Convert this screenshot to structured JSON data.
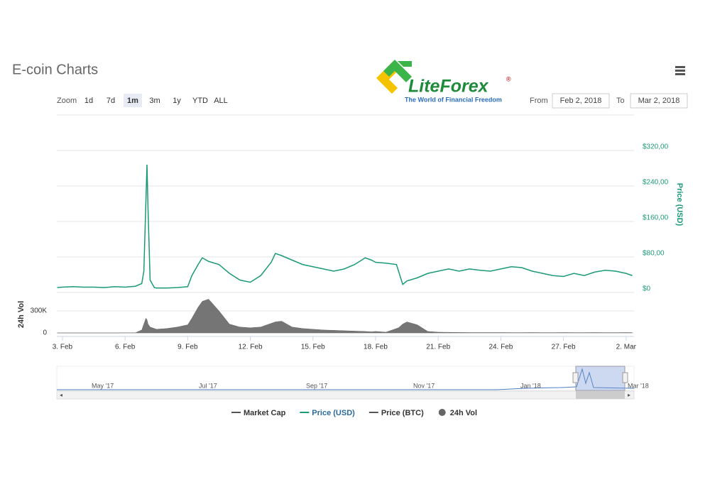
{
  "header": {
    "title": "E-coin Charts",
    "logo_text": "LiteForex",
    "logo_mark": "®",
    "logo_tagline": "The World of Financial Freedom"
  },
  "controls": {
    "zoom_label": "Zoom",
    "buttons": [
      "1d",
      "7d",
      "1m",
      "3m",
      "1y",
      "YTD",
      "ALL"
    ],
    "active_button": 2,
    "from_label": "From",
    "from_value": "Feb 2, 2018",
    "to_label": "To",
    "to_value": "Mar 2, 2018"
  },
  "navigator": {
    "labels": [
      "May '17",
      "Jul '17",
      "Sep '17",
      "Nov '17",
      "Jan '18",
      "Mar '18"
    ]
  },
  "chart_data": {
    "type": "line",
    "y_title": "Price (USD)",
    "y2_title": "24h Vol",
    "xlim": [
      2.73,
      30.38
    ],
    "xticks": [
      {
        "value": 3,
        "label": "3. Feb"
      },
      {
        "value": 6,
        "label": "6. Feb"
      },
      {
        "value": 9,
        "label": "9. Feb"
      },
      {
        "value": 12,
        "label": "12. Feb"
      },
      {
        "value": 15,
        "label": "15. Feb"
      },
      {
        "value": 18,
        "label": "18. Feb"
      },
      {
        "value": 21,
        "label": "21. Feb"
      },
      {
        "value": 24,
        "label": "24. Feb"
      },
      {
        "value": 27,
        "label": "27. Feb"
      },
      {
        "value": 30,
        "label": "2. Mar"
      }
    ],
    "ylim": [
      0,
      400
    ],
    "yticks": [
      {
        "value": 0,
        "label": "$0"
      },
      {
        "value": 80,
        "label": "$80,00"
      },
      {
        "value": 160,
        "label": "$160,00"
      },
      {
        "value": 240,
        "label": "$240,00"
      },
      {
        "value": 320,
        "label": "$320,00"
      }
    ],
    "y2lim": [
      0,
      500000
    ],
    "y2ticks": [
      0,
      {
        "value": 300000,
        "label": "300K"
      }
    ],
    "grid": true,
    "x": [
      2.75,
      3,
      3.5,
      4,
      4.5,
      5,
      5.5,
      6,
      6.5,
      6.8,
      6.9,
      7.0,
      7.05,
      7.1,
      7.2,
      7.4,
      7.5,
      8,
      8.5,
      9,
      9.2,
      9.5,
      9.7,
      10,
      10.5,
      11,
      11.5,
      12,
      12.5,
      13,
      13.2,
      13.5,
      14,
      14.5,
      15,
      15.5,
      16,
      16.5,
      17,
      17.5,
      17.8,
      18,
      18.5,
      19,
      19.1,
      19.3,
      19.5,
      20,
      20.5,
      21,
      21.5,
      22,
      22.5,
      23,
      23.5,
      24,
      24.5,
      25,
      25.5,
      26,
      26.5,
      27,
      27.5,
      28,
      28.5,
      29,
      29.5,
      30,
      30.3
    ],
    "series": [
      {
        "name": "Price (USD)",
        "color": "#1b9a78",
        "values": [
          3,
          4,
          5,
          4,
          4,
          3,
          5,
          4,
          6,
          12,
          40,
          200,
          280,
          180,
          20,
          3,
          2,
          2,
          3,
          5,
          30,
          55,
          70,
          62,
          55,
          35,
          20,
          15,
          30,
          60,
          80,
          75,
          65,
          55,
          50,
          45,
          40,
          45,
          55,
          70,
          65,
          60,
          58,
          55,
          40,
          10,
          18,
          25,
          35,
          40,
          45,
          40,
          45,
          42,
          40,
          45,
          50,
          48,
          40,
          35,
          30,
          28,
          35,
          30,
          38,
          42,
          40,
          35,
          30
        ]
      },
      {
        "name": "24h Vol",
        "color": "#666666",
        "axis": "y2",
        "values": [
          0,
          0,
          0,
          0,
          0,
          0,
          0,
          1000,
          2000,
          40000,
          120000,
          200000,
          180000,
          120000,
          80000,
          60000,
          50000,
          60000,
          80000,
          110000,
          200000,
          350000,
          430000,
          460000,
          300000,
          120000,
          80000,
          70000,
          80000,
          130000,
          150000,
          160000,
          80000,
          60000,
          50000,
          40000,
          35000,
          30000,
          25000,
          20000,
          15000,
          20000,
          10000,
          60000,
          70000,
          120000,
          150000,
          110000,
          20000,
          10000,
          8000,
          6000,
          5000,
          5000,
          5000,
          5000,
          4000,
          4000,
          5000,
          4000,
          4000,
          5000,
          4000,
          4000,
          5000,
          4000,
          4000,
          5000,
          4000
        ]
      }
    ],
    "legend": [
      {
        "name": "Market Cap",
        "color": "#555555",
        "symbol": "line"
      },
      {
        "name": "Price (USD)",
        "color": "#1b9a78",
        "symbol": "line"
      },
      {
        "name": "Price (BTC)",
        "color": "#555555",
        "symbol": "line"
      },
      {
        "name": "24h Vol",
        "color": "#666666",
        "symbol": "circle"
      }
    ]
  }
}
